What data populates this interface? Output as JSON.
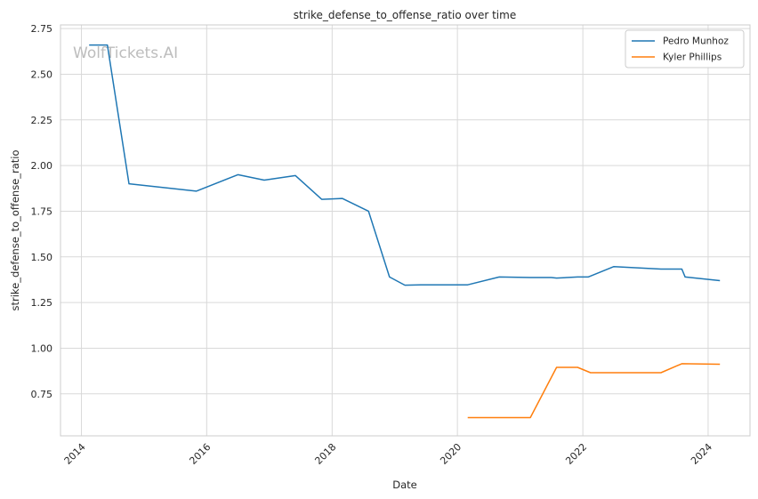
{
  "colors": {
    "series_1": "#1f77b4",
    "series_2": "#ff7f0e",
    "grid": "#d9d9d9",
    "frame": "#cccccc"
  },
  "watermark": "WolfTickets.AI",
  "chart_data": {
    "type": "line",
    "title": "strike_defense_to_offense_ratio over time",
    "xlabel": "Date",
    "ylabel": "strike_defense_to_offense_ratio",
    "x_type": "date",
    "xlim": [
      "2013-09-01",
      "2024-09-01"
    ],
    "ylim": [
      0.52,
      2.77
    ],
    "x_ticks": [
      "2014",
      "2016",
      "2018",
      "2020",
      "2022",
      "2024"
    ],
    "y_ticks": [
      "0.75",
      "1.00",
      "1.25",
      "1.50",
      "1.75",
      "2.00",
      "2.25",
      "2.50",
      "2.75"
    ],
    "grid": true,
    "legend_position": "top-right",
    "series": [
      {
        "name": "Pedro Munhoz",
        "points": [
          [
            "2014-02-15",
            2.66
          ],
          [
            "2014-06-01",
            2.66
          ],
          [
            "2014-10-05",
            1.9
          ],
          [
            "2015-11-01",
            1.86
          ],
          [
            "2016-07-01",
            1.95
          ],
          [
            "2016-12-01",
            1.92
          ],
          [
            "2017-06-01",
            1.945
          ],
          [
            "2017-11-01",
            1.815
          ],
          [
            "2018-03-01",
            1.82
          ],
          [
            "2018-08-01",
            1.75
          ],
          [
            "2018-12-01",
            1.39
          ],
          [
            "2019-03-01",
            1.345
          ],
          [
            "2019-06-01",
            1.347
          ],
          [
            "2020-03-01",
            1.347
          ],
          [
            "2020-09-01",
            1.39
          ],
          [
            "2021-03-01",
            1.387
          ],
          [
            "2021-07-01",
            1.387
          ],
          [
            "2021-08-01",
            1.384
          ],
          [
            "2021-12-01",
            1.39
          ],
          [
            "2022-02-01",
            1.39
          ],
          [
            "2022-07-01",
            1.447
          ],
          [
            "2023-04-01",
            1.433
          ],
          [
            "2023-08-01",
            1.433
          ],
          [
            "2023-08-20",
            1.39
          ],
          [
            "2024-03-10",
            1.37
          ]
        ]
      },
      {
        "name": "Kyler Phillips",
        "points": [
          [
            "2020-03-01",
            0.62
          ],
          [
            "2021-03-01",
            0.62
          ],
          [
            "2021-08-01",
            0.895
          ],
          [
            "2021-12-01",
            0.895
          ],
          [
            "2022-02-15",
            0.866
          ],
          [
            "2023-04-01",
            0.866
          ],
          [
            "2023-08-01",
            0.915
          ],
          [
            "2024-03-10",
            0.912
          ]
        ]
      }
    ]
  }
}
